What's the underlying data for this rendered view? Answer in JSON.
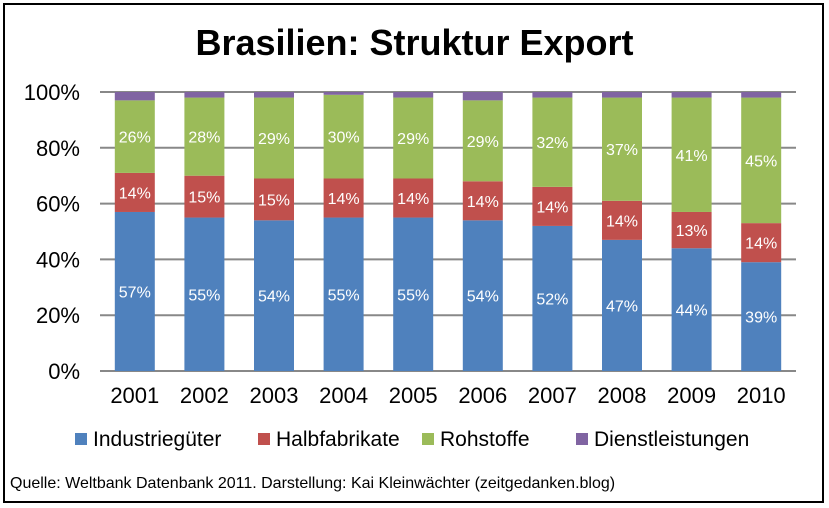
{
  "chart_data": {
    "type": "bar",
    "stacked": true,
    "title": "Brasilien: Struktur Export",
    "categories": [
      "2001",
      "2002",
      "2003",
      "2004",
      "2005",
      "2006",
      "2007",
      "2008",
      "2009",
      "2010"
    ],
    "ylim": [
      0,
      100
    ],
    "yticks": [
      "0%",
      "20%",
      "40%",
      "60%",
      "80%",
      "100%"
    ],
    "grid": true,
    "legend_position": "bottom",
    "series": [
      {
        "name": "Industriegüter",
        "color": "#4f81bd",
        "values": [
          57,
          55,
          54,
          55,
          55,
          54,
          52,
          47,
          44,
          39
        ],
        "labels": true
      },
      {
        "name": "Halbfabrikate",
        "color": "#c0504d",
        "values": [
          14,
          15,
          15,
          14,
          14,
          14,
          14,
          14,
          13,
          14
        ],
        "labels": true
      },
      {
        "name": "Rohstoffe",
        "color": "#9bbb59",
        "values": [
          26,
          28,
          29,
          30,
          29,
          29,
          32,
          37,
          41,
          45
        ],
        "labels": true
      },
      {
        "name": "Dienstleistungen",
        "color": "#8064a2",
        "values": [
          3,
          2,
          2,
          1,
          2,
          3,
          2,
          2,
          2,
          2
        ],
        "labels": false
      }
    ]
  },
  "source": "Quelle: Weltbank Datenbank 2011. Darstellung: Kai Kleinwächter (zeitgedanken.blog)"
}
